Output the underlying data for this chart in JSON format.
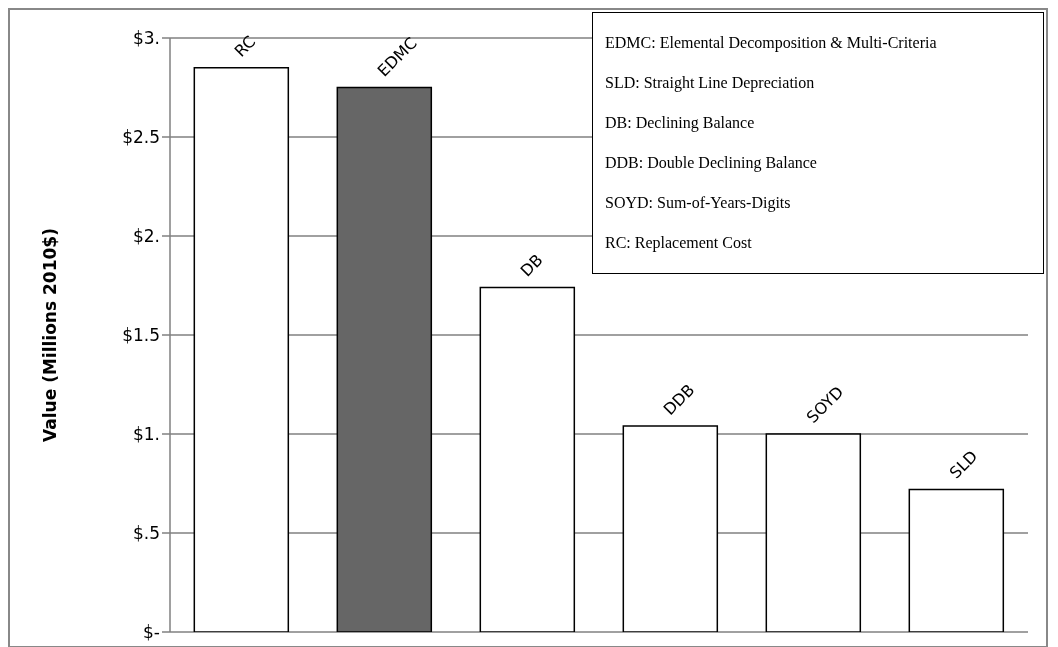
{
  "chart_data": {
    "type": "bar",
    "ylabel": "Value (Millions 2010$)",
    "categories": [
      "RC",
      "EDMC",
      "DB",
      "DDB",
      "SOYD",
      "SLD"
    ],
    "values": [
      2.85,
      2.75,
      1.74,
      1.04,
      1.0,
      0.72
    ],
    "colors": [
      "#ffffff",
      "#666666",
      "#ffffff",
      "#ffffff",
      "#ffffff",
      "#ffffff"
    ],
    "ylim": [
      0,
      3
    ],
    "yticks": [
      {
        "value": 0,
        "label": "$-"
      },
      {
        "value": 0.5,
        "label": "$.5"
      },
      {
        "value": 1,
        "label": "$1."
      },
      {
        "value": 1.5,
        "label": "$1.5"
      },
      {
        "value": 2,
        "label": "$2."
      },
      {
        "value": 2.5,
        "label": "$2.5"
      },
      {
        "value": 3,
        "label": "$3."
      }
    ],
    "grid": "y",
    "annotations": [
      "EDMC: Elemental Decomposition & Multi-Criteria",
      "SLD: Straight Line Depreciation",
      "DB: Declining Balance",
      "DDB: Double Declining Balance",
      "SOYD: Sum-of-Years-Digits",
      "RC: Replacement Cost"
    ]
  }
}
